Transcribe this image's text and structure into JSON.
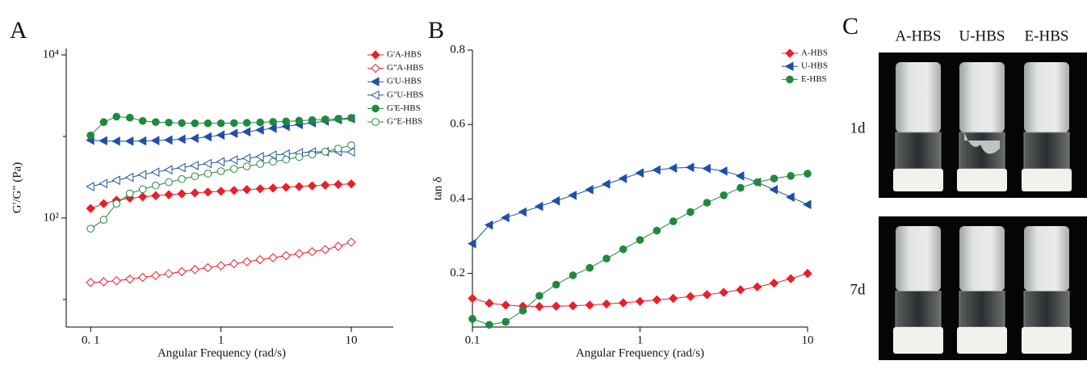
{
  "chart_data": [
    {
      "type": "line",
      "panel_label": "A",
      "x_label": "Angular Frequency (rad/s)",
      "y_label": "G'/G\" (Pa)",
      "xscale": "log",
      "yscale": "log",
      "xlim": [
        0.065,
        21
      ],
      "ylim": [
        4.6,
        12000
      ],
      "xticks": [
        {
          "value": 0.1,
          "label": "0. 1"
        },
        1,
        10
      ],
      "yticks": [
        {
          "value": 10000,
          "label": "10⁴"
        },
        {
          "value": 100,
          "label": "10²"
        }
      ],
      "yminor": [
        1000,
        10
      ],
      "legend": "top-right",
      "x": [
        0.1,
        0.126,
        0.158,
        0.2,
        0.251,
        0.316,
        0.398,
        0.501,
        0.631,
        0.794,
        1,
        1.26,
        1.58,
        2,
        2.51,
        3.16,
        3.98,
        5.01,
        6.31,
        7.94,
        10
      ],
      "series": [
        {
          "name": "G'A-HBS",
          "color": "#e8202a",
          "marker": "diamond",
          "filled": true,
          "values": [
            131,
            150,
            165,
            175,
            182,
            188,
            193,
            198,
            203,
            208,
            213,
            218,
            223,
            228,
            233,
            238,
            243,
            248,
            253,
            258,
            262
          ]
        },
        {
          "name": "G\"A-HBS",
          "color": "#e8202a",
          "marker": "diamond",
          "filled": false,
          "values": [
            16.2,
            16.5,
            17,
            17.8,
            18.7,
            19.7,
            20.8,
            22,
            23.3,
            24.6,
            26,
            27.5,
            29.1,
            30.8,
            32.6,
            34.5,
            36.5,
            38.6,
            41,
            45,
            50.5
          ]
        },
        {
          "name": "G'U-HBS",
          "color": "#1f4fa8",
          "marker": "triangle",
          "filled": true,
          "values": [
            900,
            885,
            875,
            875,
            880,
            890,
            905,
            925,
            950,
            990,
            1040,
            1090,
            1140,
            1200,
            1260,
            1330,
            1400,
            1470,
            1540,
            1600,
            1650
          ]
        },
        {
          "name": "G\"U-HBS",
          "color": "#1f4fa8",
          "marker": "triangle",
          "filled": false,
          "values": [
            243,
            265,
            290,
            315,
            340,
            365,
            390,
            415,
            440,
            465,
            490,
            515,
            540,
            565,
            590,
            610,
            630,
            645,
            650,
            650,
            645
          ]
        },
        {
          "name": "G'E-HBS",
          "color": "#1f8a3e",
          "marker": "circle",
          "filled": true,
          "values": [
            1030,
            1500,
            1750,
            1700,
            1550,
            1500,
            1480,
            1460,
            1450,
            1450,
            1450,
            1460,
            1470,
            1490,
            1510,
            1530,
            1560,
            1590,
            1620,
            1650,
            1690
          ]
        },
        {
          "name": "G\"E-HBS",
          "color": "#1f8a3e",
          "marker": "circle",
          "filled": false,
          "values": [
            74,
            95,
            150,
            200,
            225,
            250,
            275,
            300,
            325,
            350,
            375,
            400,
            430,
            460,
            490,
            520,
            560,
            600,
            650,
            710,
            780
          ]
        }
      ]
    },
    {
      "type": "line",
      "panel_label": "B",
      "x_label": "Angular Frequency (rad/s)",
      "y_label": "tan δ",
      "xscale": "log",
      "yscale": "linear",
      "xlim": [
        0.1,
        10
      ],
      "ylim": [
        0.056,
        0.8
      ],
      "xticks": [
        0.1,
        1,
        10
      ],
      "yticks": [
        0.2,
        0.4,
        0.6,
        0.8
      ],
      "legend": "top-right",
      "x": [
        0.1,
        0.126,
        0.158,
        0.2,
        0.251,
        0.316,
        0.398,
        0.501,
        0.631,
        0.794,
        1,
        1.26,
        1.58,
        2,
        2.51,
        3.16,
        3.98,
        5.01,
        6.31,
        7.94,
        10
      ],
      "series": [
        {
          "name": "A-HBS",
          "color": "#e8202a",
          "marker": "diamond",
          "filled": true,
          "values": [
            0.133,
            0.12,
            0.115,
            0.112,
            0.111,
            0.112,
            0.113,
            0.115,
            0.118,
            0.121,
            0.125,
            0.129,
            0.133,
            0.138,
            0.143,
            0.149,
            0.156,
            0.164,
            0.174,
            0.186,
            0.2
          ]
        },
        {
          "name": "U-HBS",
          "color": "#1f4fa8",
          "marker": "triangle",
          "filled": true,
          "values": [
            0.28,
            0.33,
            0.35,
            0.365,
            0.38,
            0.395,
            0.41,
            0.425,
            0.44,
            0.455,
            0.47,
            0.478,
            0.483,
            0.485,
            0.482,
            0.475,
            0.462,
            0.445,
            0.425,
            0.405,
            0.385
          ]
        },
        {
          "name": "E-HBS",
          "color": "#1f8a3e",
          "marker": "circle",
          "filled": true,
          "values": [
            0.078,
            0.062,
            0.07,
            0.1,
            0.14,
            0.17,
            0.195,
            0.215,
            0.24,
            0.265,
            0.29,
            0.315,
            0.34,
            0.365,
            0.39,
            0.41,
            0.43,
            0.445,
            0.455,
            0.462,
            0.468
          ]
        }
      ]
    }
  ],
  "photos": {
    "panel_label": "C",
    "columns": [
      "A-HBS",
      "U-HBS",
      "E-HBS"
    ],
    "rows": [
      "1d",
      "7d"
    ]
  }
}
